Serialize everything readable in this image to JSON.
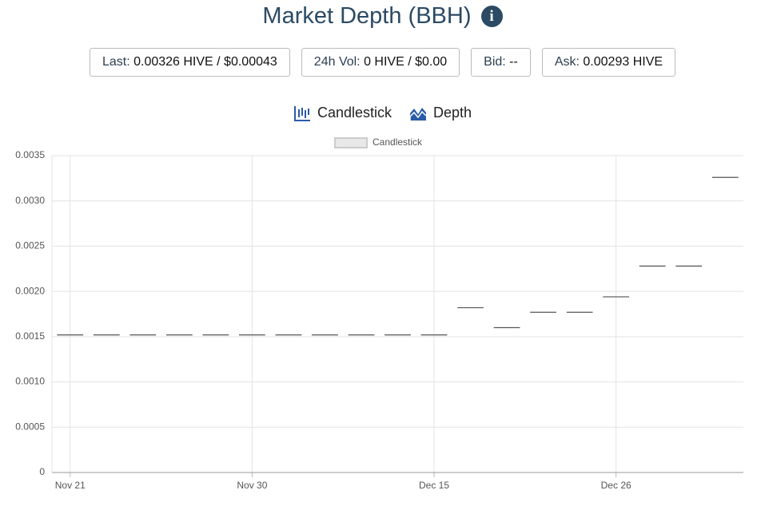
{
  "header": {
    "title": "Market Depth (BBH)"
  },
  "stats": [
    {
      "label": "Last:",
      "value": "0.00326 HIVE / $0.00043"
    },
    {
      "label": "24h Vol:",
      "value": "0 HIVE / $0.00"
    },
    {
      "label": "Bid:",
      "value": "--"
    },
    {
      "label": "Ask:",
      "value": "0.00293 HIVE"
    }
  ],
  "tabs": [
    "Candlestick",
    "Depth"
  ],
  "chart_data": {
    "type": "candlestick",
    "categories": [
      "Nov 21",
      null,
      null,
      null,
      null,
      "Nov 30",
      null,
      null,
      null,
      null,
      "Dec 15",
      null,
      null,
      null,
      null,
      "Dec 26",
      null,
      null,
      null
    ],
    "series": [
      {
        "name": "Candlestick",
        "color": "#555555",
        "values": [
          0.00152,
          0.00152,
          0.00152,
          0.00152,
          0.00152,
          0.00152,
          0.00152,
          0.00152,
          0.00152,
          0.00152,
          0.00152,
          0.00182,
          0.0016,
          0.00177,
          0.00177,
          0.00194,
          0.00228,
          0.00228,
          0.00326
        ]
      }
    ],
    "ylim": [
      0,
      0.0035
    ],
    "yticks": [
      0,
      0.0005,
      {
        "value": 0.001,
        "label": "0.0010"
      },
      0.0015,
      {
        "value": 0.002,
        "label": "0.0020"
      },
      0.0025,
      {
        "value": 0.003,
        "label": "0.0030"
      },
      0.0035
    ],
    "grid": true
  }
}
